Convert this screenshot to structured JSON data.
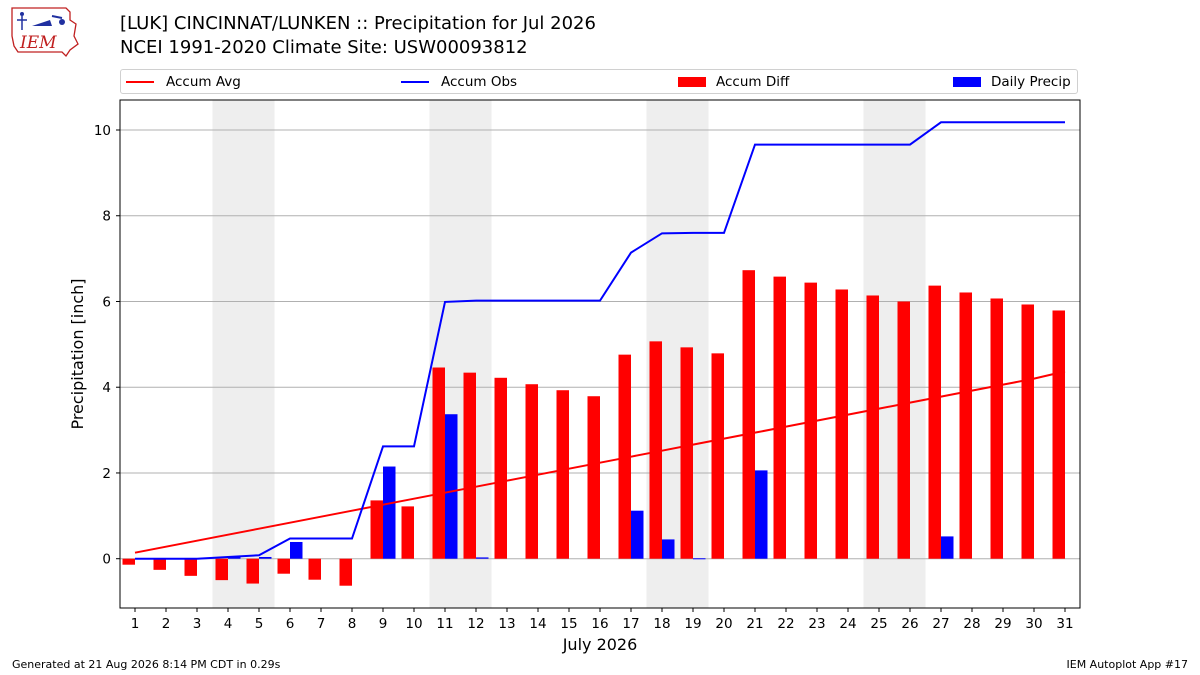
{
  "header": {
    "title": "[LUK] CINCINNAT/LUNKEN :: Precipitation for Jul 2026",
    "subtitle": "NCEI 1991-2020 Climate Site: USW00093812",
    "logo_text": "IEM"
  },
  "footer": {
    "generated": "Generated at 21 Aug 2026 8:14 PM CDT in 0.29s",
    "app": "IEM Autoplot App #17"
  },
  "colors": {
    "accum_avg": "#ff0000",
    "accum_obs": "#0000ff",
    "accum_diff": "#ff0000",
    "daily_precip": "#0000ff",
    "weekend_shade": "#eeeeee",
    "grid": "#b0b0b0"
  },
  "legend": [
    {
      "label": "Accum Avg",
      "kind": "line",
      "color": "#ff0000"
    },
    {
      "label": "Accum Obs",
      "kind": "line",
      "color": "#0000ff"
    },
    {
      "label": "Accum Diff",
      "kind": "patch",
      "color": "#ff0000"
    },
    {
      "label": "Daily Precip",
      "kind": "patch",
      "color": "#0000ff"
    }
  ],
  "chart_data": {
    "type": "bar",
    "xlabel": "July 2026",
    "ylabel": "Precipitation [inch]",
    "ylim": [
      -1.15,
      10.7
    ],
    "yticks": [
      0,
      2,
      4,
      6,
      8,
      10
    ],
    "grid": true,
    "legend_position": "top",
    "days": [
      1,
      2,
      3,
      4,
      5,
      6,
      7,
      8,
      9,
      10,
      11,
      12,
      13,
      14,
      15,
      16,
      17,
      18,
      19,
      20,
      21,
      22,
      23,
      24,
      25,
      26,
      27,
      28,
      29,
      30,
      31
    ],
    "shaded_day_ranges": [
      [
        4,
        5
      ],
      [
        11,
        12
      ],
      [
        18,
        19
      ],
      [
        25,
        26
      ]
    ],
    "series": [
      {
        "name": "Accum Avg",
        "kind": "line",
        "values": [
          0.14,
          0.28,
          0.42,
          0.56,
          0.7,
          0.84,
          0.98,
          1.12,
          1.26,
          1.4,
          1.54,
          1.68,
          1.82,
          1.96,
          2.1,
          2.24,
          2.38,
          2.52,
          2.66,
          2.8,
          2.94,
          3.08,
          3.22,
          3.36,
          3.5,
          3.64,
          3.78,
          3.92,
          4.06,
          4.2,
          4.37
        ]
      },
      {
        "name": "Accum Obs",
        "kind": "line",
        "values": [
          0.0,
          0.0,
          0.0,
          0.04,
          0.08,
          0.47,
          0.47,
          0.47,
          2.62,
          2.62,
          5.99,
          6.02,
          6.02,
          6.02,
          6.02,
          6.02,
          7.14,
          7.59,
          7.6,
          7.6,
          9.66,
          9.66,
          9.66,
          9.66,
          9.66,
          9.66,
          10.18,
          10.18,
          10.18,
          10.18,
          10.18
        ]
      },
      {
        "name": "Accum Diff",
        "kind": "bar",
        "values": [
          -0.14,
          -0.26,
          -0.4,
          -0.5,
          -0.58,
          -0.35,
          -0.49,
          -0.63,
          1.36,
          1.22,
          4.46,
          4.34,
          4.22,
          4.07,
          3.93,
          3.79,
          4.76,
          5.07,
          4.93,
          4.79,
          6.73,
          6.58,
          6.44,
          6.28,
          6.14,
          6.0,
          6.37,
          6.21,
          6.07,
          5.93,
          5.79
        ]
      },
      {
        "name": "Daily Precip",
        "kind": "bar",
        "values": [
          0,
          0,
          0,
          0.04,
          0.04,
          0.39,
          0,
          0,
          2.15,
          0,
          3.37,
          0.03,
          0,
          0,
          0,
          0,
          1.12,
          0.45,
          0.01,
          0,
          2.06,
          0,
          0,
          0,
          0,
          0,
          0.52,
          0,
          0,
          0,
          0
        ]
      }
    ]
  }
}
